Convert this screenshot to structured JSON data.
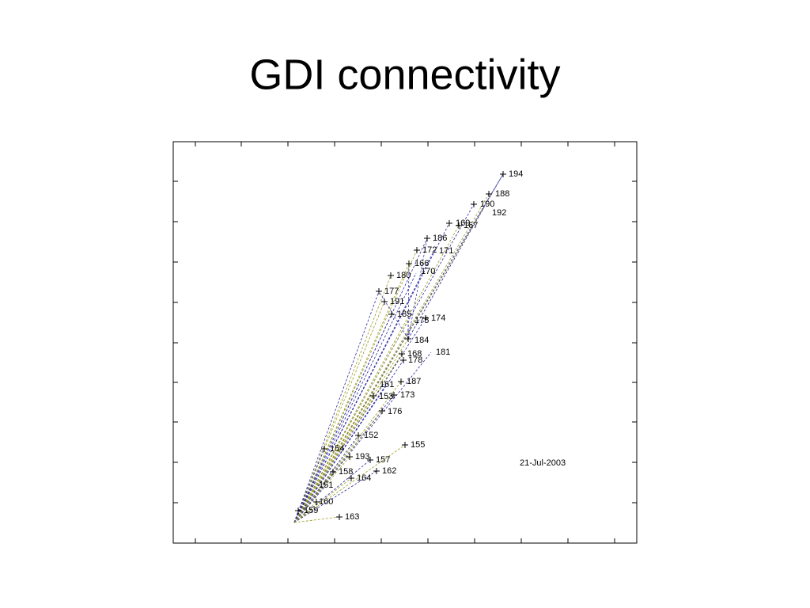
{
  "title": "GDI connectivity",
  "date": "21-Jul-2003",
  "nodes": [
    {
      "label": "194"
    },
    {
      "label": "188"
    },
    {
      "label": "190"
    },
    {
      "label": "192"
    },
    {
      "label": "169"
    },
    {
      "label": "167"
    },
    {
      "label": "186"
    },
    {
      "label": "172"
    },
    {
      "label": "171"
    },
    {
      "label": "166"
    },
    {
      "label": "170"
    },
    {
      "label": "180"
    },
    {
      "label": "177"
    },
    {
      "label": "191"
    },
    {
      "label": "185"
    },
    {
      "label": "175"
    },
    {
      "label": "174"
    },
    {
      "label": "184"
    },
    {
      "label": "181"
    },
    {
      "label": "168"
    },
    {
      "label": "178"
    },
    {
      "label": "187"
    },
    {
      "label": "161"
    },
    {
      "label": "153"
    },
    {
      "label": "173"
    },
    {
      "label": "176"
    },
    {
      "label": "152"
    },
    {
      "label": "155"
    },
    {
      "label": "154"
    },
    {
      "label": "193"
    },
    {
      "label": "157"
    },
    {
      "label": "158"
    },
    {
      "label": "162"
    },
    {
      "label": "164"
    },
    {
      "label": "151"
    },
    {
      "label": "160"
    },
    {
      "label": "159"
    },
    {
      "label": "163"
    }
  ]
}
